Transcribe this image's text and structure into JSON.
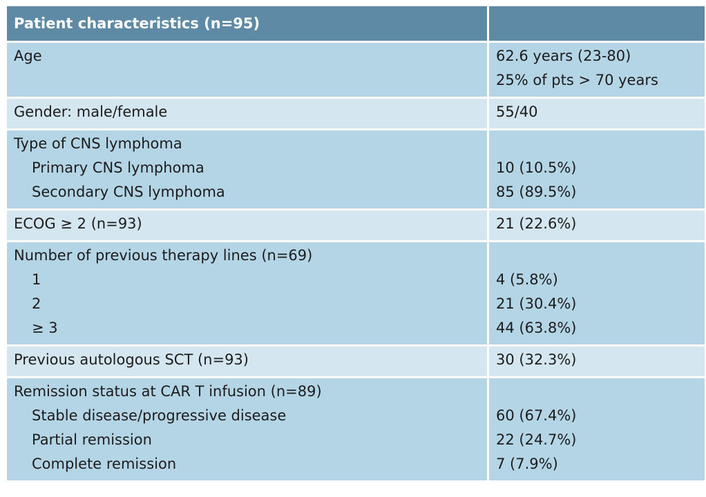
{
  "table": {
    "header": {
      "title": "Patient characteristics (n=95)",
      "value_col": ""
    },
    "rows": [
      {
        "label": "Age",
        "subitems": [],
        "values": [
          "62.6 years (23-80)",
          "25% of pts > 70 years"
        ]
      },
      {
        "label": "Gender: male/female",
        "subitems": [],
        "values": [
          "55/40"
        ]
      },
      {
        "label": "Type of CNS lymphoma",
        "subitems": [
          "Primary CNS lymphoma",
          "Secondary CNS lymphoma"
        ],
        "values": [
          "10 (10.5%)",
          "85 (89.5%)"
        ]
      },
      {
        "label": "ECOG ≥ 2 (n=93)",
        "subitems": [],
        "values": [
          "21 (22.6%)"
        ]
      },
      {
        "label": "Number of previous therapy lines (n=69)",
        "subitems": [
          "1",
          "2",
          "≥ 3"
        ],
        "values": [
          "4 (5.8%)",
          "21 (30.4%)",
          "44 (63.8%)"
        ]
      },
      {
        "label": "Previous autologous SCT (n=93)",
        "subitems": [],
        "values": [
          "30 (32.3%)"
        ]
      },
      {
        "label": "Remission status at CAR T infusion (n=89)",
        "subitems": [
          "Stable disease/progressive disease",
          "Partial remission",
          "Complete remission"
        ],
        "values": [
          "60 (67.4%)",
          "22 (24.7%)",
          "7 (7.9%)"
        ]
      }
    ]
  },
  "colors": {
    "header_bg": "#5e8aa5",
    "row_dark": "#b4d5e6",
    "row_light": "#d4e6f0",
    "text": "#1c1c1c"
  }
}
